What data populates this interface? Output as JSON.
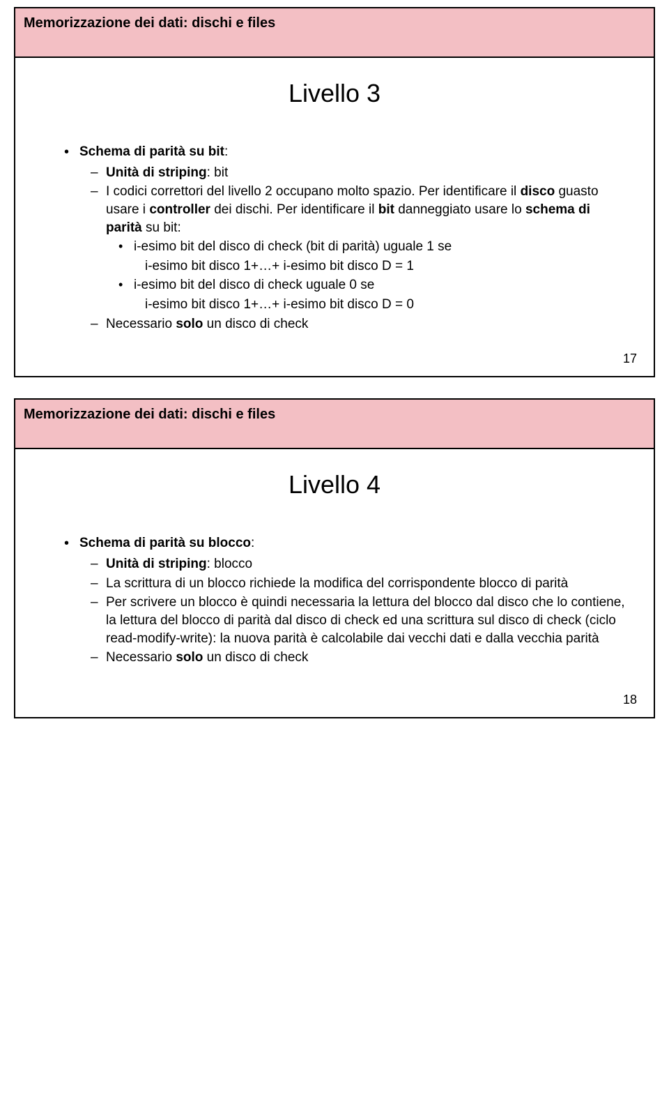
{
  "colors": {
    "header_bg": "#f3bfc4",
    "page_bg": "#ffffff",
    "border": "#000000",
    "text": "#000000"
  },
  "typography": {
    "header_fontsize": 20,
    "title_fontsize": 36,
    "body_fontsize": 19,
    "pagenum_fontsize": 18,
    "font_family": "Arial"
  },
  "slide1": {
    "header": "Memorizzazione dei dati: dischi e files",
    "title": "Livello 3",
    "page_number": "17",
    "b1_pre": "Schema di parità su bit",
    "b1_post": ":",
    "b2_pre": "Unità di striping",
    "b2_post": ": bit",
    "b3_a": "I codici correttori del livello 2 occupano molto spazio. Per identificare il ",
    "b3_b": "disco",
    "b3_c": " guasto usare i ",
    "b3_d": "controller",
    "b3_e": " dei dischi. Per identificare il ",
    "b3_f": "bit",
    "b3_g": " danneggiato usare lo ",
    "b3_h": "schema di parità",
    "b3_i": " su bit:",
    "b4": "i-esimo bit del disco di check (bit di parità) uguale 1 se",
    "b5": "i-esimo bit disco 1+…+ i-esimo bit disco D = 1",
    "b6": "i-esimo bit del disco di check uguale 0 se",
    "b7": "i-esimo bit disco 1+…+ i-esimo bit disco D = 0",
    "b8_a": "Necessario ",
    "b8_b": "solo",
    "b8_c": " un disco di check"
  },
  "slide2": {
    "header": "Memorizzazione dei dati: dischi e files",
    "title": "Livello 4",
    "page_number": "18",
    "b1_pre": "Schema di parità su blocco",
    "b1_post": ":",
    "b2_pre": "Unità di striping",
    "b2_post": ": blocco",
    "b3": "La scrittura di un blocco richiede la modifica del corrispondente blocco di parità",
    "b4": "Per scrivere un blocco è quindi necessaria la lettura del blocco dal disco che lo contiene, la lettura del blocco di parità dal disco di check ed una scrittura sul disco di check (ciclo read-modify-write): la nuova parità è calcolabile dai vecchi dati e dalla vecchia parità",
    "b5_a": "Necessario ",
    "b5_b": "solo",
    "b5_c": " un disco di check"
  }
}
